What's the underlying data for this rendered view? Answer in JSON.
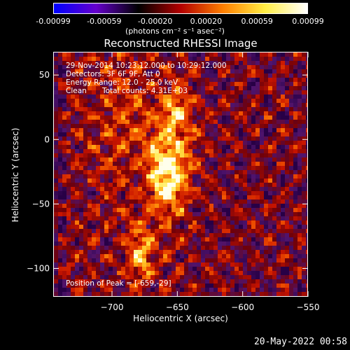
{
  "colorbar": {
    "ticks": [
      "-0.00099",
      "-0.00059",
      "-0.00020",
      "0.00020",
      "0.00059",
      "0.00099"
    ],
    "unit_label": "(photons cm⁻² s⁻¹ asec⁻²)",
    "colors": [
      "#0000ff",
      "#6600cc",
      "#000000",
      "#b30000",
      "#ff7f00",
      "#ffee44",
      "#ffffff"
    ]
  },
  "annotations": {
    "time_range": "29-Nov-2014 10:23:12.000 to 10:29:12.000",
    "detectors": "Detectors: 3F 6F 9F, Att 0",
    "energy_range": "Energy Range: 12.0 - 25.0 keV",
    "algorithm": "Clean",
    "total_counts": "Total counts: 4.31E+03",
    "peak": "Position of Peak = [-659,-29]"
  },
  "footer": {
    "date": "20-May-2022 00:58"
  },
  "chart_data": {
    "type": "heatmap",
    "title": "Reconstructed RHESSI Image",
    "xlabel": "Heliocentric X (arcsec)",
    "ylabel": "Heliocentric Y (arcsec)",
    "xlim": [
      -745,
      -550
    ],
    "ylim": [
      -122,
      68
    ],
    "x_ticks": [
      -700,
      -650,
      -600,
      -550
    ],
    "y_ticks": [
      50,
      0,
      -50,
      -100
    ],
    "x_tick_labels": [
      "−700",
      "−650",
      "−600",
      "−550"
    ],
    "y_tick_labels": [
      "50",
      "0",
      "−50",
      "−100"
    ],
    "value_range": [
      -0.00099,
      0.00099
    ],
    "peak_position": [
      -659,
      -29
    ]
  }
}
